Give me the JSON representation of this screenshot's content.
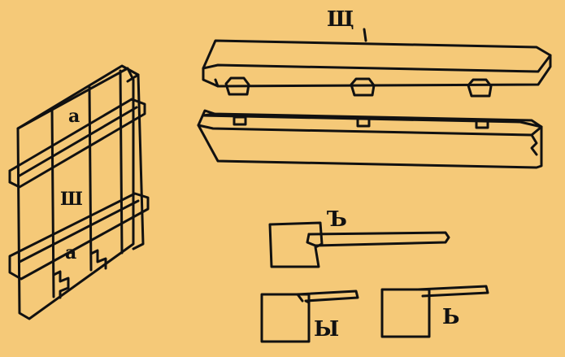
{
  "colors": {
    "background": "#f5c978",
    "ink": "#111111"
  },
  "labels": {
    "door_upper": "а",
    "door_middle": "Ш",
    "door_lower": "а",
    "beam": "Щ",
    "bar_joint": "Ъ",
    "joint_left": "Ы",
    "joint_right": "Ь"
  }
}
